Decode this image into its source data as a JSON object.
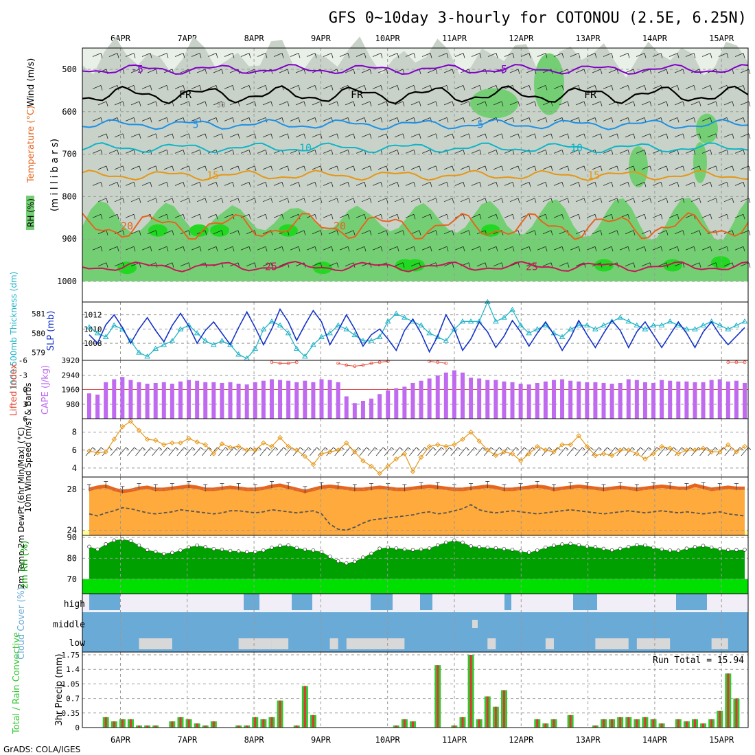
{
  "title": "GFS 0~10day 3-hourly for COTONOU (2.5E, 6.25N)",
  "footer": "GrADS: COLA/IGES",
  "run_total_label": "Run Total = 15.94",
  "dates": [
    "6APR",
    "7APR",
    "8APR",
    "9APR",
    "10APR",
    "11APR",
    "12APR",
    "13APR",
    "14APR",
    "15APR"
  ],
  "colors": {
    "rh_light": "#e8f0e8",
    "rh_mid": "#c8d2c8",
    "rh_green": "#74cf74",
    "rh_bright": "#22d822",
    "temp_m5": "#8000c8",
    "temp_fr": "#000000",
    "temp_5": "#1e90e6",
    "temp_10": "#10b4c8",
    "temp_15": "#e69614",
    "temp_20": "#e6641e",
    "temp_25": "#c8145a",
    "thickness": "#20b4c8",
    "slp": "#1432c8",
    "cape": "#c06af0",
    "li": "#e64632",
    "wind10": "#e69614",
    "temp2m": "#e6641e",
    "temp2m_fill": "#ffaa3c",
    "rh2m": "#00a000",
    "rh2m_bright": "#00e000",
    "cloud": "#6aaad6",
    "cloud_gray": "#d8d8d8",
    "precip_total": "#32c832",
    "precip_conv": "#e63232"
  },
  "chart_data": [
    {
      "type": "heatmap",
      "name": "upper-air",
      "ylabel_parts": [
        "RH (%)",
        "Temperature (°C)",
        "Wind (m/s)",
        "(m i l l i b a r s)"
      ],
      "y_ticks": [
        500,
        600,
        700,
        800,
        900,
        1000
      ],
      "ylim": [
        450,
        1000
      ],
      "contours": [
        {
          "label": "-5",
          "base": 500,
          "labels": [
            "-5",
            "-5"
          ]
        },
        {
          "label": "FR",
          "base": 560,
          "labels": [
            "FR",
            "FR",
            "FR"
          ]
        },
        {
          "label": "5",
          "base": 630,
          "labels": [
            "5",
            "5"
          ]
        },
        {
          "label": "10",
          "base": 685,
          "labels": [
            "10",
            "10"
          ]
        },
        {
          "label": "15",
          "base": 750,
          "labels": [
            "15",
            "15"
          ]
        },
        {
          "label": "20",
          "base": 870,
          "labels": [
            "20",
            "20"
          ]
        },
        {
          "label": "25",
          "base": 965,
          "labels": [
            "25",
            "25"
          ]
        }
      ],
      "rh_levels_shown": [
        "30"
      ]
    },
    {
      "type": "line",
      "name": "thickness-slp",
      "ylabel_left": "1000-500mb Thickness (dm)",
      "ylabel_right": "SLP (mb)",
      "thickness_ticks": [
        579,
        580,
        581
      ],
      "slp_ticks": [
        1008,
        1010,
        1012
      ],
      "thickness_ylim": [
        578.6,
        581.6
      ],
      "slp_ylim": [
        1005.6,
        1013.8
      ],
      "slp": [
        1009.2,
        1008.0,
        1010.6,
        1012.0,
        1010.2,
        1008.0,
        1010.0,
        1011.6,
        1009.8,
        1008.2,
        1010.5,
        1012.2,
        1010.4,
        1008.0,
        1009.8,
        1011.0,
        1009.4,
        1007.8,
        1010.2,
        1012.4,
        1010.2,
        1007.8,
        1010.0,
        1012.8,
        1011.0,
        1008.4,
        1010.6,
        1012.6,
        1011.0,
        1007.8,
        1009.8,
        1012.0,
        1010.0,
        1007.6,
        1009.2,
        1010.0,
        1008.6,
        1007.0,
        1009.8,
        1011.4,
        1009.4,
        1006.8,
        1009.0,
        1012.0,
        1010.0,
        1007.0,
        1008.6,
        1011.0,
        1009.6,
        1007.4,
        1009.0,
        1011.2,
        1009.6,
        1007.6,
        1009.4,
        1011.0,
        1009.2,
        1007.0,
        1008.8,
        1011.2,
        1009.2,
        1007.4,
        1009.4,
        1011.2,
        1009.8,
        1007.4,
        1009.6,
        1011.0,
        1009.2,
        1007.4,
        1009.2,
        1011.0,
        1009.4,
        1007.4,
        1009.6,
        1011.0,
        1009.2,
        1007.8,
        1009.0,
        1010.2
      ],
      "thickness": [
        580.3,
        580.0,
        579.8,
        580.4,
        580.2,
        579.6,
        579.0,
        578.8,
        579.2,
        579.4,
        579.6,
        580.2,
        580.4,
        580.0,
        579.6,
        579.4,
        579.6,
        579.4,
        578.9,
        578.7,
        579.2,
        580.2,
        580.6,
        580.4,
        580.0,
        579.2,
        578.8,
        579.4,
        579.8,
        580.0,
        580.4,
        580.2,
        579.9,
        579.6,
        579.6,
        579.8,
        580.6,
        581.0,
        580.8,
        580.6,
        580.4,
        580.0,
        579.8,
        579.6,
        580.2,
        580.6,
        580.6,
        580.6,
        581.6,
        580.6,
        580.8,
        581.2,
        580.4,
        580.0,
        580.2,
        580.4,
        580.0,
        579.8,
        580.2,
        580.4,
        580.4,
        580.2,
        580.4,
        580.6,
        580.8,
        580.6,
        580.4,
        580.2,
        580.4,
        580.4,
        580.6,
        580.4,
        580.2,
        580.2,
        580.4,
        580.6,
        580.4,
        580.2,
        580.4,
        580.6
      ]
    },
    {
      "type": "bar",
      "name": "cape-li",
      "ylabel_left": "Lifted Index",
      "ylabel_right": "CAPE (J/kg)",
      "li_ticks": [
        "-6",
        "-3",
        "0",
        "3",
        "6"
      ],
      "cape_ticks": [
        980,
        1960,
        2940,
        3920
      ],
      "cape_ylim": [
        0,
        3920
      ],
      "cape": [
        1700,
        1620,
        2450,
        2650,
        2800,
        2600,
        2450,
        2350,
        2400,
        2450,
        2350,
        2500,
        2600,
        2550,
        2450,
        2450,
        2400,
        2450,
        2350,
        2300,
        2450,
        2550,
        2650,
        2600,
        2550,
        2450,
        2550,
        2450,
        2650,
        2600,
        2450,
        1500,
        1050,
        1200,
        1350,
        1650,
        1900,
        2050,
        2150,
        2400,
        2550,
        2700,
        2900,
        3100,
        3250,
        3100,
        2750,
        2700,
        2600,
        2600,
        2500,
        2450,
        2350,
        2300,
        2400,
        2500,
        2600,
        2650,
        2550,
        2500,
        2450,
        2450,
        2400,
        2350,
        2400,
        2650,
        2600,
        2450,
        2400,
        2600,
        2550,
        2500,
        2500,
        2450,
        2450,
        2600,
        2650,
        2500,
        2550,
        2400
      ],
      "li": [
        null,
        null,
        null,
        null,
        null,
        null,
        null,
        null,
        null,
        null,
        null,
        null,
        null,
        null,
        null,
        null,
        null,
        null,
        null,
        null,
        null,
        null,
        -5.6,
        -5.4,
        -5.4,
        -5.6,
        null,
        null,
        null,
        null,
        -5.4,
        -5.0,
        -4.8,
        -5.0,
        -5.4,
        -5.6,
        -5.8,
        null,
        null,
        null,
        null,
        -5.8,
        -5.6,
        -5.4,
        null,
        null,
        null,
        null,
        null,
        null,
        null,
        null,
        null,
        null,
        null,
        null,
        null,
        null,
        null,
        null,
        null,
        null,
        null,
        null,
        null,
        null,
        null,
        null,
        null,
        null,
        null,
        null,
        null,
        null,
        null,
        null,
        null,
        -5.6,
        -5.6,
        -5.6
      ]
    },
    {
      "type": "line",
      "name": "wind10m",
      "ylabel": "10m Wind Speed (m/s) & Barbs",
      "y_ticks": [
        4,
        6,
        8
      ],
      "ylim": [
        3,
        9.5
      ],
      "values": [
        5.9,
        5.7,
        5.8,
        7.2,
        8.6,
        9.2,
        8.2,
        7.2,
        7.1,
        6.6,
        6.8,
        6.8,
        7.3,
        6.9,
        6.6,
        5.6,
        6.7,
        6.3,
        6.4,
        6.0,
        6.0,
        6.8,
        6.4,
        7.4,
        6.4,
        6.0,
        5.3,
        4.4,
        5.6,
        5.8,
        6.0,
        6.8,
        5.8,
        4.8,
        4.2,
        3.4,
        4.2,
        5.0,
        5.6,
        3.6,
        5.2,
        6.4,
        6.6,
        6.4,
        6.6,
        7.2,
        8.0,
        7.0,
        6.0,
        5.4,
        5.8,
        5.6,
        4.8,
        5.6,
        6.4,
        6.0,
        5.8,
        6.6,
        6.6,
        7.6,
        6.4,
        5.4,
        5.6,
        5.4,
        6.0,
        6.0,
        5.6,
        5.0,
        5.6,
        6.4,
        6.2,
        5.6,
        6.0,
        6.0,
        6.2,
        5.8,
        5.8,
        6.6,
        5.8,
        6.4
      ]
    },
    {
      "type": "area",
      "name": "temp2m",
      "ylabel": "2m Temp 2m DewPt (6hr Min/Max) (°C)",
      "y_ticks": [
        24,
        28
      ],
      "ylim": [
        23.5,
        29.2
      ],
      "temp": [
        28.0,
        28.2,
        28.3,
        28.0,
        27.8,
        27.9,
        28.1,
        28.2,
        28.0,
        28.0,
        28.1,
        28.2,
        28.3,
        28.2,
        28.0,
        28.0,
        28.1,
        28.2,
        28.1,
        28.0,
        28.0,
        28.1,
        28.3,
        28.4,
        28.2,
        28.0,
        27.8,
        28.0,
        28.2,
        28.3,
        28.2,
        28.1,
        28.0,
        28.0,
        28.1,
        28.2,
        28.1,
        28.0,
        28.0,
        28.1,
        28.2,
        28.3,
        28.2,
        28.1,
        28.0,
        28.0,
        28.1,
        28.2,
        28.3,
        28.2,
        28.0,
        28.0,
        28.1,
        28.2,
        28.3,
        28.2,
        28.0,
        28.1,
        28.2,
        28.3,
        28.2,
        28.1,
        28.0,
        28.1,
        28.2,
        28.1,
        28.0,
        28.1,
        28.2,
        28.3,
        28.2,
        28.1,
        28.1,
        28.4,
        28.2,
        28.0,
        28.1,
        28.2,
        28.1,
        28.1
      ],
      "dewpt": [
        25.6,
        25.4,
        25.7,
        25.9,
        26.2,
        26.1,
        25.9,
        25.7,
        25.6,
        25.7,
        25.8,
        26.0,
        25.9,
        25.8,
        25.7,
        25.6,
        25.7,
        25.9,
        25.9,
        25.8,
        25.7,
        25.8,
        26.0,
        25.9,
        25.8,
        25.7,
        25.8,
        25.9,
        25.6,
        24.6,
        24.1,
        24.0,
        24.3,
        24.7,
        25.0,
        25.1,
        25.2,
        25.3,
        25.4,
        25.5,
        25.7,
        25.8,
        25.6,
        25.7,
        25.9,
        26.1,
        26.5,
        26.0,
        25.8,
        25.7,
        25.8,
        25.9,
        25.8,
        25.7,
        25.6,
        25.7,
        25.8,
        25.9,
        26.0,
        25.9,
        25.8,
        25.7,
        25.6,
        25.7,
        25.8,
        25.9,
        25.8,
        25.7,
        25.8,
        25.9,
        25.8,
        25.7,
        25.8,
        25.7,
        25.6,
        25.7,
        25.8,
        25.6,
        25.5,
        25.4
      ]
    },
    {
      "type": "area",
      "name": "rh2m",
      "ylabel": "2m RH (%)",
      "y_ticks": [
        70,
        80,
        90
      ],
      "ylim": [
        63,
        91
      ],
      "values": [
        85.6,
        84.3,
        86.8,
        88.6,
        89.2,
        88.4,
        86.2,
        84.0,
        83.2,
        82.2,
        82.7,
        83.8,
        85.3,
        86.2,
        85.4,
        84.5,
        84.2,
        83.6,
        83.4,
        83.0,
        83.1,
        83.8,
        85.1,
        86.0,
        86.3,
        85.0,
        84.2,
        83.8,
        83.1,
        80.8,
        78.6,
        77.6,
        78.4,
        80.4,
        82.3,
        84.7,
        85.2,
        84.8,
        84.3,
        84.0,
        84.3,
        84.8,
        86.3,
        87.6,
        88.6,
        87.6,
        85.8,
        85.4,
        85.2,
        84.9,
        84.5,
        84.1,
        83.4,
        82.8,
        83.8,
        85.2,
        86.1,
        86.7,
        87.0,
        86.4,
        85.7,
        85.4,
        84.6,
        83.9,
        84.6,
        85.5,
        86.4,
        86.2,
        85.2,
        84.3,
        83.8,
        83.7,
        84.7,
        85.4,
        86.0,
        85.2,
        84.4,
        84.0,
        84.0,
        84.1
      ]
    },
    {
      "type": "area",
      "name": "cloud-cover",
      "ylabel": "Cloud Cover (%)",
      "tick_labels": [
        "high",
        "middle",
        "low"
      ],
      "gray_bins": [
        [
          6,
          10
        ],
        [
          18,
          22
        ],
        [
          22,
          24
        ],
        [
          29,
          30
        ],
        [
          31,
          38
        ],
        [
          48,
          49
        ],
        [
          55,
          56
        ],
        [
          61,
          62
        ],
        [
          62,
          65
        ],
        [
          66,
          70
        ],
        [
          75,
          77
        ]
      ]
    },
    {
      "type": "bar",
      "name": "precip",
      "legend": "Total / Rain Convective",
      "ylabel": "3hr Precip (mm)",
      "y_ticks": [
        "0",
        "0.35",
        "0.7",
        "1.05",
        "1.4",
        "1.75"
      ],
      "ylim": [
        0,
        1.75
      ],
      "total": [
        0,
        0,
        0.25,
        0.15,
        0.2,
        0.2,
        0.05,
        0.05,
        0.05,
        0,
        0.15,
        0.25,
        0.2,
        0.1,
        0.05,
        0.15,
        0,
        0,
        0.05,
        0.05,
        0.25,
        0.2,
        0.25,
        0.65,
        0,
        0.05,
        1.0,
        0.3,
        0,
        0,
        0,
        0,
        0,
        0,
        0,
        0,
        0,
        0.05,
        0.2,
        0.15,
        0,
        0,
        1.5,
        0,
        0.05,
        0.25,
        1.75,
        0.2,
        0.75,
        0.5,
        0.9,
        0,
        0,
        0,
        0.2,
        0.1,
        0.2,
        0,
        0.3,
        0,
        0,
        0.05,
        0.2,
        0.2,
        0.25,
        0.25,
        0.2,
        0.25,
        0.2,
        0.1,
        0,
        0.2,
        0.15,
        0.2,
        0.1,
        0.2,
        0.4,
        1.3,
        0.7,
        0
      ]
    }
  ]
}
